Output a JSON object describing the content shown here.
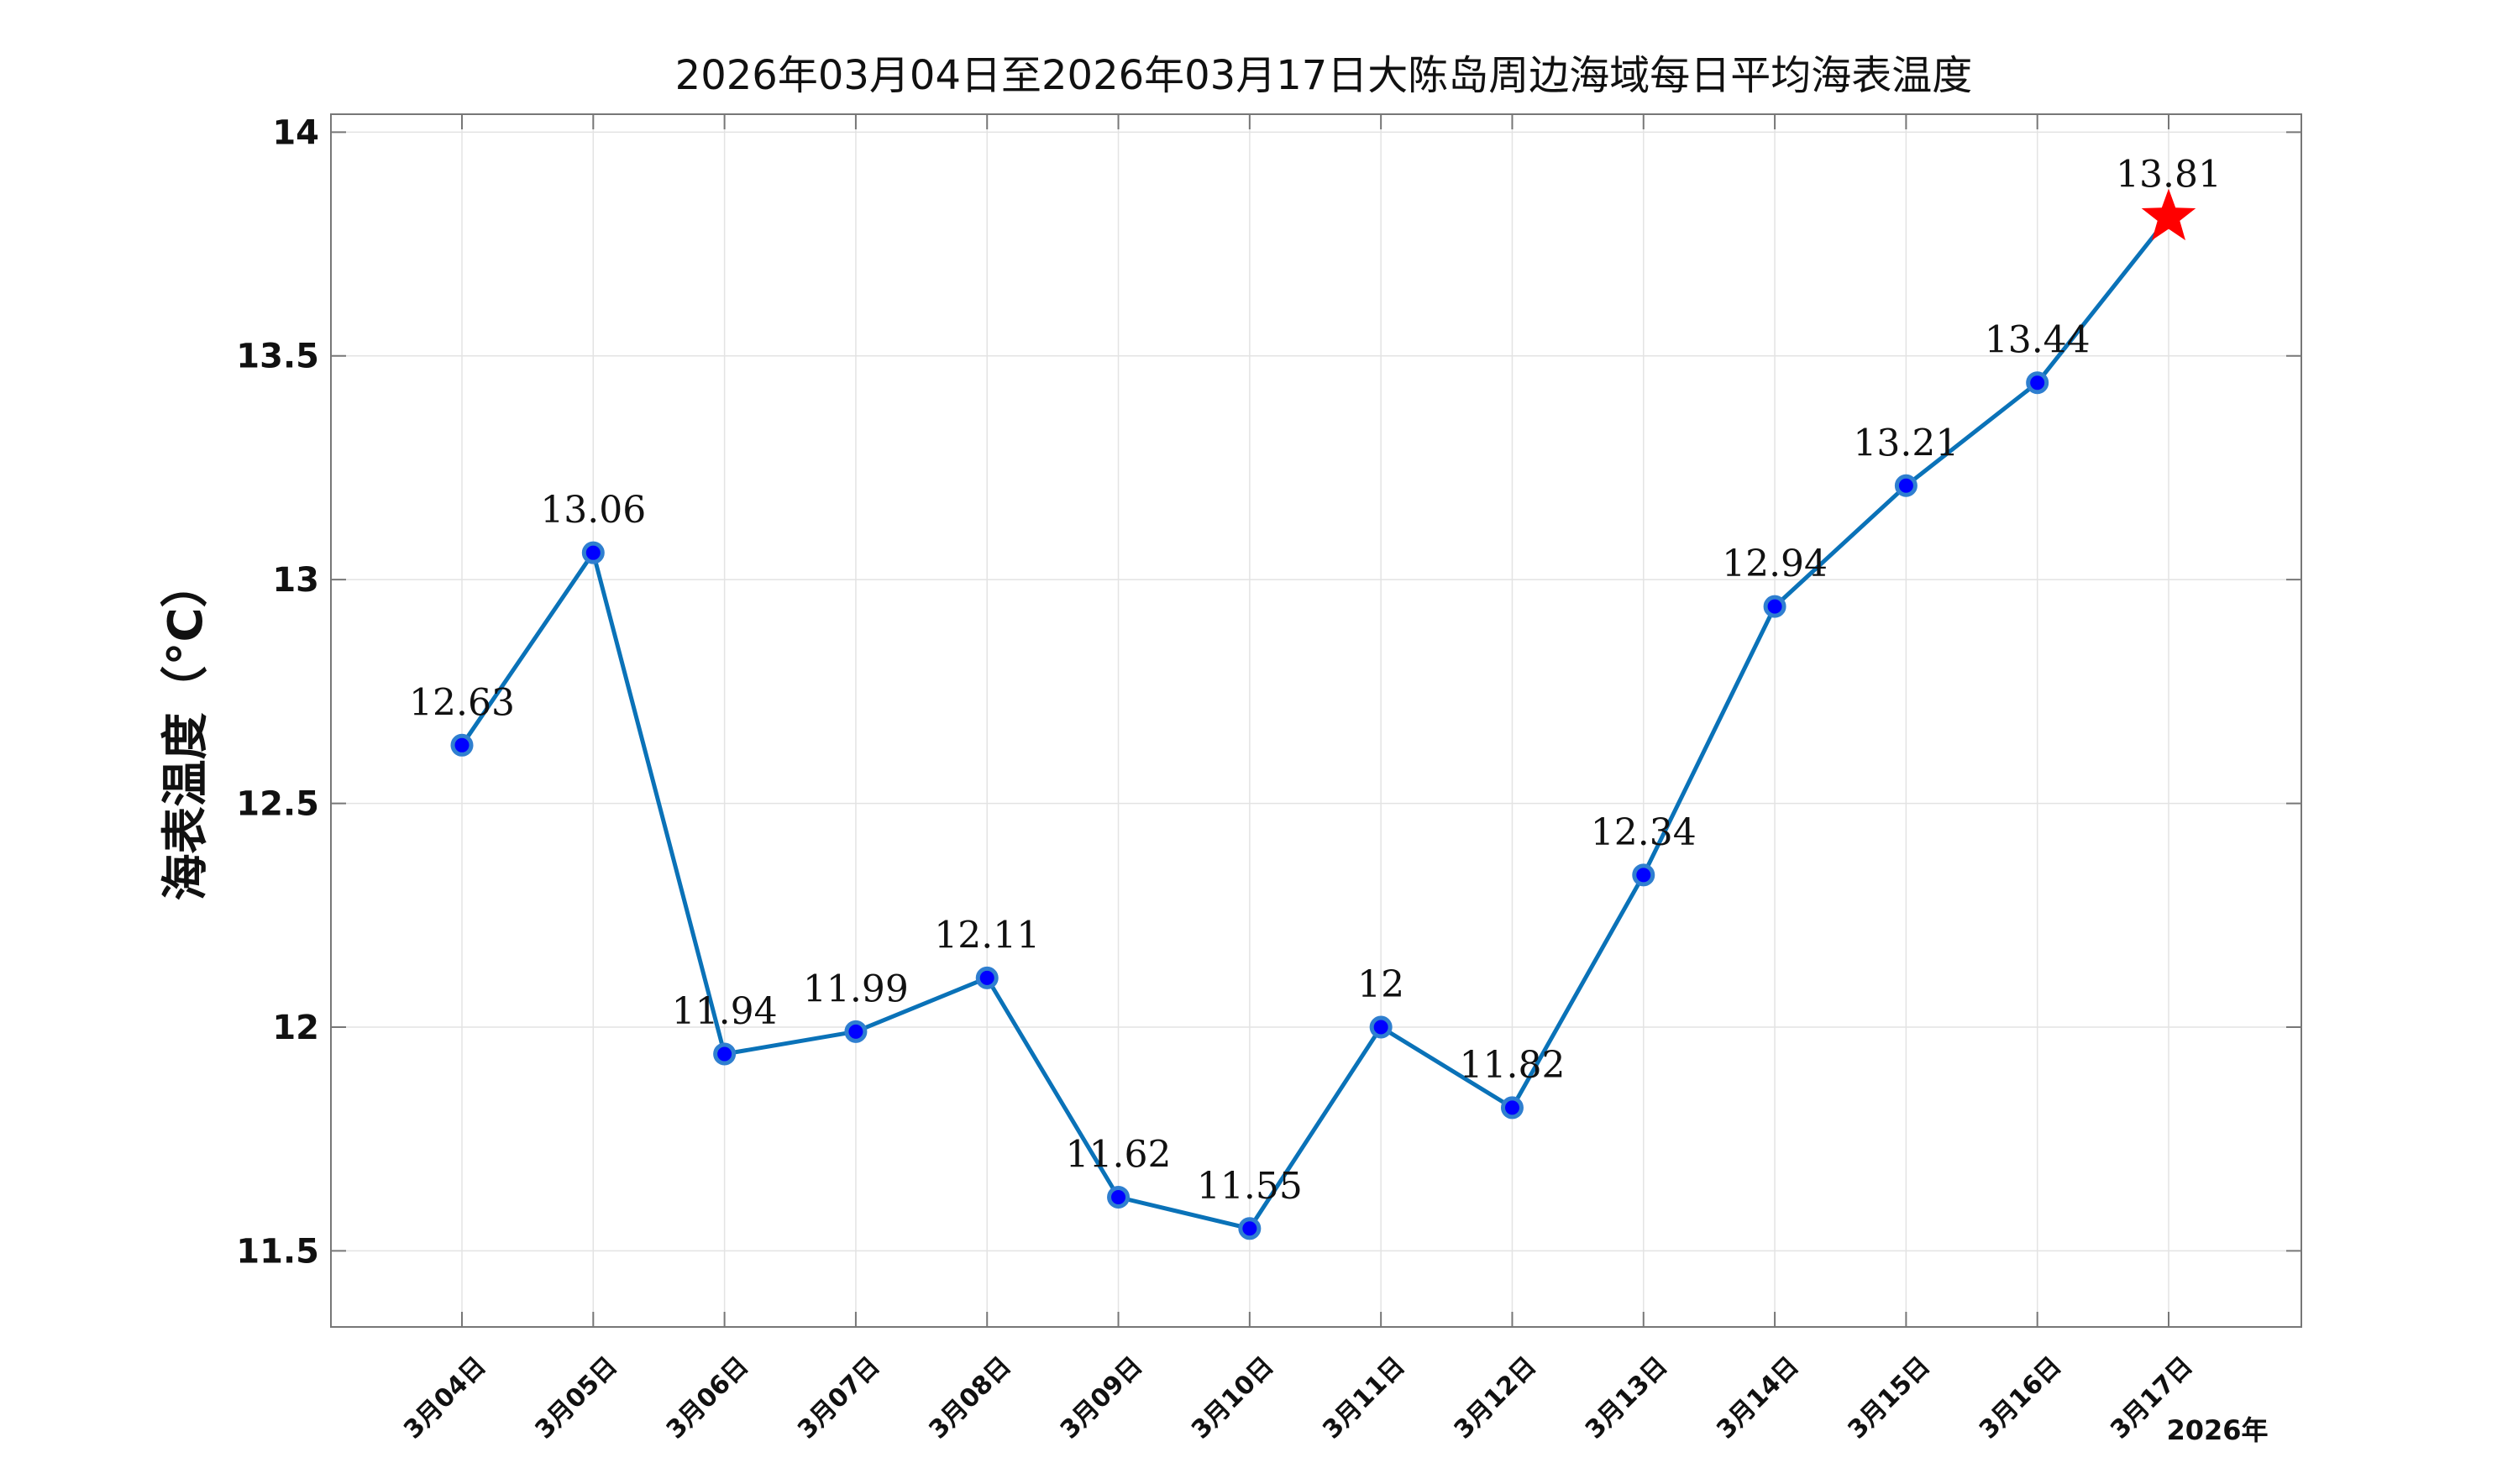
{
  "chart_data": {
    "type": "line",
    "title": "2026年03月04日至2026年03月17日大陈岛周边海域每日平均海表温度",
    "ylabel": "海表温度（°C）",
    "xlabel": "",
    "year_label": "2026年",
    "categories": [
      "3月04日",
      "3月05日",
      "3月06日",
      "3月07日",
      "3月08日",
      "3月09日",
      "3月10日",
      "3月11日",
      "3月12日",
      "3月13日",
      "3月14日",
      "3月15日",
      "3月16日",
      "3月17日"
    ],
    "values": [
      12.63,
      13.06,
      11.94,
      11.99,
      12.11,
      11.62,
      11.55,
      12.0,
      11.82,
      12.34,
      12.94,
      13.21,
      13.44,
      13.81
    ],
    "data_labels": [
      "12.63",
      "13.06",
      "11.94",
      "11.99",
      "12.11",
      "11.62",
      "11.55",
      "12",
      "11.82",
      "12.34",
      "12.94",
      "13.21",
      "13.44",
      "13.81"
    ],
    "ylim": [
      11.33,
      14.04
    ],
    "yticks": [
      11.5,
      12,
      12.5,
      13,
      13.5,
      14
    ],
    "ytick_labels": [
      "11.5",
      "12",
      "12.5",
      "13",
      "13.5",
      "14"
    ],
    "grid": true,
    "highlight_last_marker": "star",
    "colors": {
      "line": "#0a72b8",
      "marker_fill": "#0000ff",
      "marker_edge": "#2f7fd0",
      "star": "#ff0000",
      "grid": "#e3e3e3",
      "axis": "#777777"
    }
  }
}
